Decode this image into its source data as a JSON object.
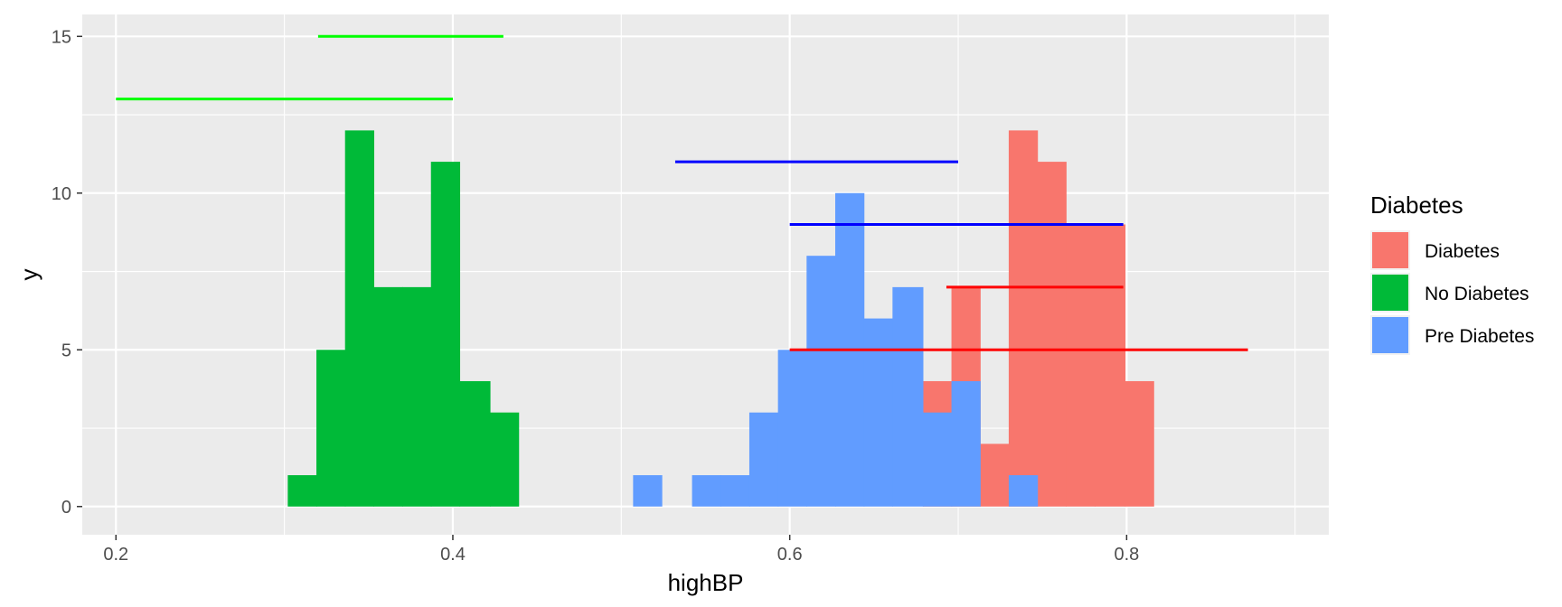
{
  "chart_data": {
    "type": "bar",
    "xlabel": "highBP",
    "ylabel": "y",
    "xlim": [
      0.18,
      0.92
    ],
    "ylim": [
      -0.9,
      15.7
    ],
    "grid": true,
    "legend_position": "right",
    "x_ticks": [
      0.2,
      0.4,
      0.6,
      0.8
    ],
    "x_tick_labels": [
      "0.2",
      "0.4",
      "0.6",
      "0.8"
    ],
    "y_ticks": [
      0,
      5,
      10,
      15
    ],
    "y_tick_labels": [
      "0",
      "5",
      "10",
      "15"
    ],
    "bin_width": 0.0171,
    "legend": {
      "title": "Diabetes",
      "entries": [
        {
          "label": "Diabetes",
          "color": "#F8766D"
        },
        {
          "label": "No Diabetes",
          "color": "#00BA38"
        },
        {
          "label": "Pre Diabetes",
          "color": "#619CFF"
        }
      ]
    },
    "histograms": [
      {
        "name": "Diabetes",
        "color": "#F8766D",
        "bins": [
          {
            "x0": 0.679,
            "x1": 0.696,
            "y": 4
          },
          {
            "x0": 0.696,
            "x1": 0.713,
            "y": 7
          },
          {
            "x0": 0.713,
            "x1": 0.73,
            "y": 2
          },
          {
            "x0": 0.73,
            "x1": 0.747,
            "y": 12
          },
          {
            "x0": 0.747,
            "x1": 0.764,
            "y": 11
          },
          {
            "x0": 0.764,
            "x1": 0.781,
            "y": 9
          },
          {
            "x0": 0.781,
            "x1": 0.799,
            "y": 9
          },
          {
            "x0": 0.799,
            "x1": 0.816,
            "y": 4
          }
        ]
      },
      {
        "name": "No Diabetes",
        "color": "#00BA38",
        "bins": [
          {
            "x0": 0.302,
            "x1": 0.319,
            "y": 1
          },
          {
            "x0": 0.319,
            "x1": 0.336,
            "y": 5
          },
          {
            "x0": 0.336,
            "x1": 0.353,
            "y": 12
          },
          {
            "x0": 0.353,
            "x1": 0.37,
            "y": 7
          },
          {
            "x0": 0.37,
            "x1": 0.387,
            "y": 7
          },
          {
            "x0": 0.387,
            "x1": 0.404,
            "y": 11
          },
          {
            "x0": 0.404,
            "x1": 0.422,
            "y": 4
          },
          {
            "x0": 0.422,
            "x1": 0.439,
            "y": 3
          }
        ]
      },
      {
        "name": "Pre Diabetes",
        "color": "#619CFF",
        "bins": [
          {
            "x0": 0.507,
            "x1": 0.524,
            "y": 1
          },
          {
            "x0": 0.542,
            "x1": 0.559,
            "y": 1
          },
          {
            "x0": 0.559,
            "x1": 0.576,
            "y": 1
          },
          {
            "x0": 0.576,
            "x1": 0.593,
            "y": 3
          },
          {
            "x0": 0.593,
            "x1": 0.61,
            "y": 5
          },
          {
            "x0": 0.61,
            "x1": 0.627,
            "y": 8
          },
          {
            "x0": 0.627,
            "x1": 0.644,
            "y": 10
          },
          {
            "x0": 0.644,
            "x1": 0.661,
            "y": 6
          },
          {
            "x0": 0.661,
            "x1": 0.679,
            "y": 7
          },
          {
            "x0": 0.679,
            "x1": 0.696,
            "y": 3
          },
          {
            "x0": 0.696,
            "x1": 0.713,
            "y": 4
          },
          {
            "x0": 0.73,
            "x1": 0.747,
            "y": 1
          }
        ]
      }
    ],
    "segments": [
      {
        "series": "No Diabetes",
        "color": "#00FF00",
        "x0": 0.32,
        "x1": 0.43,
        "y": 15
      },
      {
        "series": "No Diabetes",
        "color": "#00FF00",
        "x0": 0.2,
        "x1": 0.4,
        "y": 13
      },
      {
        "series": "Pre Diabetes",
        "color": "#0000FF",
        "x0": 0.532,
        "x1": 0.7,
        "y": 11
      },
      {
        "series": "Pre Diabetes",
        "color": "#0000FF",
        "x0": 0.6,
        "x1": 0.798,
        "y": 9
      },
      {
        "series": "Diabetes",
        "color": "#FF0000",
        "x0": 0.693,
        "x1": 0.798,
        "y": 7
      },
      {
        "series": "Diabetes",
        "color": "#FF0000",
        "x0": 0.6,
        "x1": 0.872,
        "y": 5
      }
    ]
  }
}
